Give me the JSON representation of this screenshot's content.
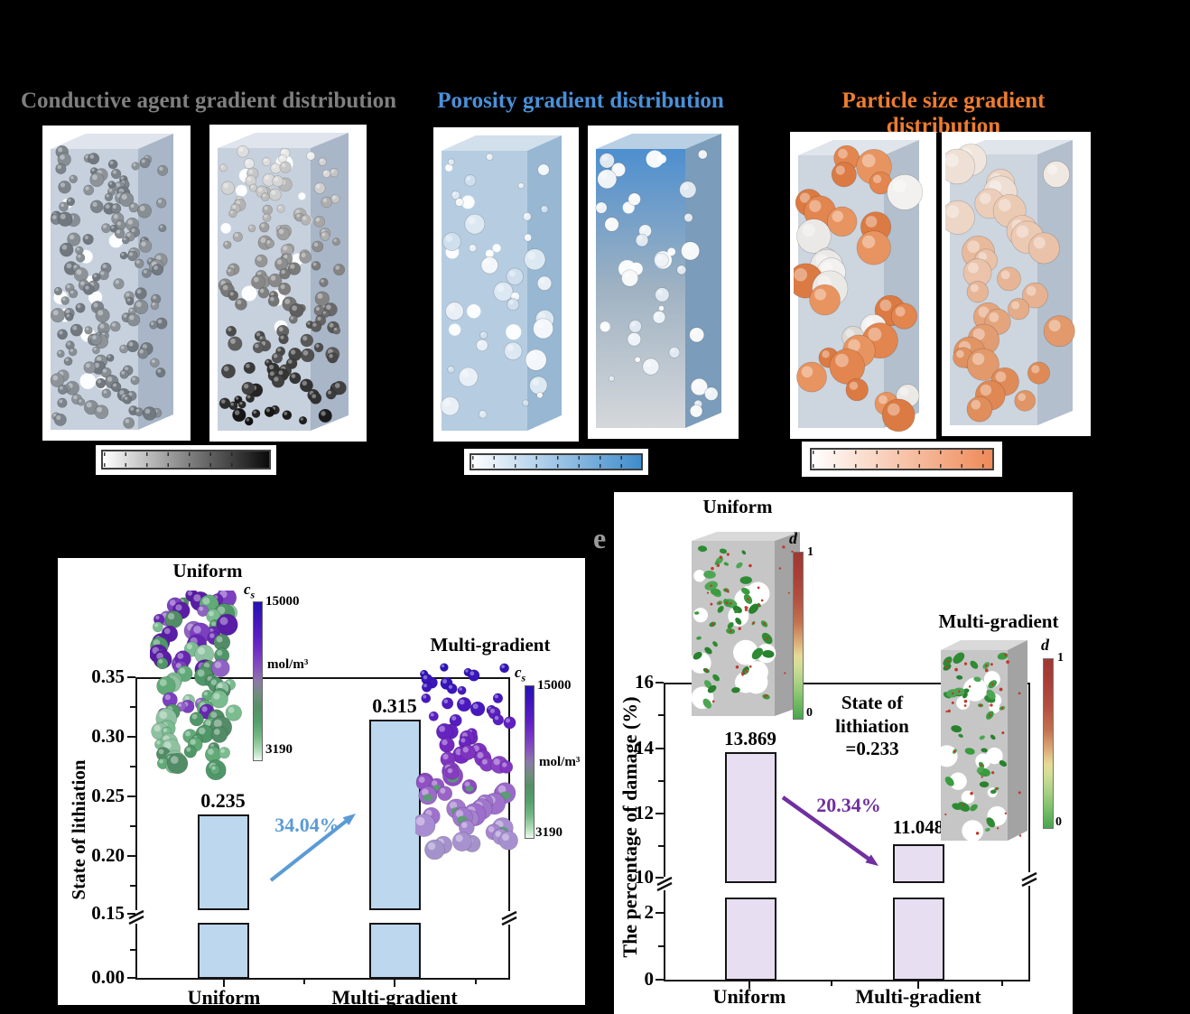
{
  "page": {
    "background": "#000000"
  },
  "top_row": {
    "groups": [
      {
        "title": "Conductive agent gradient distribution",
        "title_color": "#7f7f7f",
        "colorbar_colors": [
          "#ffffff",
          "#0a0a0a"
        ]
      },
      {
        "title": "Porosity gradient distribution",
        "title_color": "#4a90d8",
        "colorbar_colors": [
          "#ffffff",
          "#3f8ccc"
        ]
      },
      {
        "title": "Particle size gradient distribution",
        "title_color": "#ed7d31",
        "colorbar_colors": [
          "#ffffff",
          "#ef8a58"
        ]
      }
    ]
  },
  "left_chart": {
    "ylabel": "State of lithiation",
    "yticks": [
      "0.35",
      "0.30",
      "0.25",
      "0.20",
      "0.15",
      "0.00"
    ],
    "bars": [
      {
        "label": "Uniform",
        "value": "0.235"
      },
      {
        "label": "Multi-gradient",
        "value": "0.315"
      }
    ],
    "change_label": "34.04%",
    "arrow_color": "#5b9bd5",
    "bar_fill": "#bdd7ee",
    "insets": [
      {
        "title": "Uniform"
      },
      {
        "title": "Multi-gradient"
      }
    ],
    "colorbar": {
      "symbol": "c",
      "symbol_sub": "s",
      "max": "15000",
      "unit": "mol/m³",
      "min": "3190"
    }
  },
  "right_chart": {
    "panel_label": "e",
    "ylabel": "The percentage of damage (%)",
    "yticks": [
      "16",
      "14",
      "12",
      "10",
      "2",
      "0"
    ],
    "bars": [
      {
        "label": "Uniform",
        "value": "13.869"
      },
      {
        "label": "Multi-gradient",
        "value": "11.048"
      }
    ],
    "change_label": "20.34%",
    "arrow_color": "#7030a0",
    "bar_fill": "#e7def2",
    "note_lines": [
      "State of",
      "lithiation",
      "=0.233"
    ],
    "insets": [
      {
        "title": "Uniform"
      },
      {
        "title": "Multi-gradient"
      }
    ],
    "colorbar": {
      "symbol": "d",
      "max": "1",
      "min": "0"
    }
  },
  "chart_data": [
    {
      "type": "bar",
      "categories": [
        "Uniform",
        "Multi-gradient"
      ],
      "values": [
        0.235,
        0.315
      ],
      "value_labels": [
        "0.235",
        "0.315"
      ],
      "title": "",
      "xlabel": "",
      "ylabel": "State of lithiation",
      "ylim": [
        0,
        0.35
      ],
      "yticks": [
        0.0,
        0.15,
        0.2,
        0.25,
        0.3,
        0.35
      ],
      "axis_break": [
        0.0,
        0.15
      ],
      "bar_color": "#bdd7ee",
      "grid": false,
      "annotations": [
        {
          "text": "34.04%",
          "color": "#5b9bd5",
          "type": "increase-arrow"
        }
      ]
    },
    {
      "type": "bar",
      "categories": [
        "Uniform",
        "Multi-gradient"
      ],
      "values": [
        13.869,
        11.048
      ],
      "value_labels": [
        "13.869",
        "11.048"
      ],
      "title": "",
      "xlabel": "",
      "ylabel": "The percentage of damage (%)",
      "ylim": [
        0,
        16
      ],
      "yticks": [
        0,
        2,
        10,
        12,
        14,
        16
      ],
      "axis_break": [
        2,
        10
      ],
      "bar_color": "#e7def2",
      "grid": false,
      "annotations": [
        {
          "text": "20.34%",
          "color": "#7030a0",
          "type": "decrease-arrow"
        },
        {
          "text": "State of lithiation =0.233"
        }
      ]
    }
  ]
}
